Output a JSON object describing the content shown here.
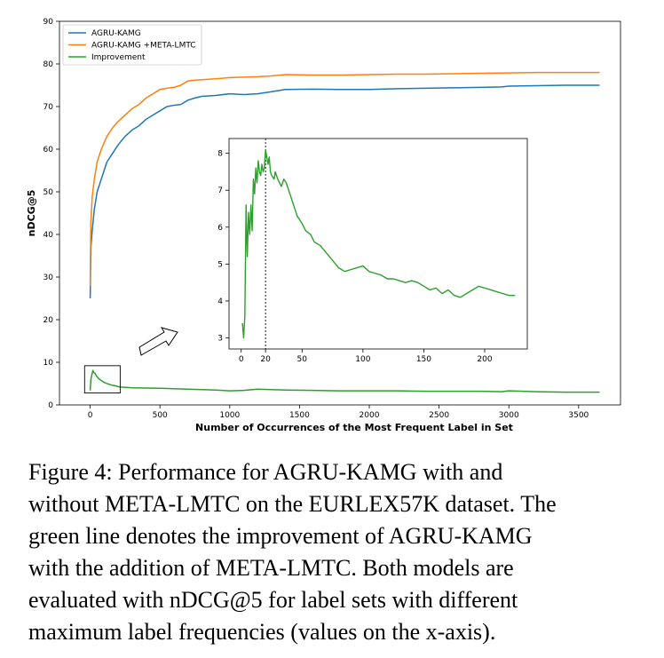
{
  "chart_data": [
    {
      "type": "line",
      "title": "",
      "xlabel": "Number of Occurrences of the Most Frequent Label in Set",
      "ylabel": "nDCG@5",
      "xlim": [
        -220,
        3800
      ],
      "ylim": [
        0,
        90
      ],
      "xticks": [
        0,
        500,
        1000,
        1500,
        2000,
        2500,
        3000,
        3500
      ],
      "yticks": [
        0,
        10,
        20,
        30,
        40,
        50,
        60,
        70,
        80,
        90
      ],
      "legend_position": "top-left",
      "series": [
        {
          "name": "AGRU-KAMG",
          "color": "#1f77b4",
          "points": [
            [
              0,
              25
            ],
            [
              5,
              37
            ],
            [
              15,
              41
            ],
            [
              30,
              46
            ],
            [
              50,
              50
            ],
            [
              80,
              53
            ],
            [
              120,
              57
            ],
            [
              160,
              59
            ],
            [
              200,
              61
            ],
            [
              250,
              63
            ],
            [
              300,
              64.5
            ],
            [
              350,
              65.5
            ],
            [
              400,
              67
            ],
            [
              450,
              68
            ],
            [
              500,
              69
            ],
            [
              550,
              70
            ],
            [
              600,
              70.3
            ],
            [
              650,
              70.5
            ],
            [
              700,
              71.5
            ],
            [
              750,
              72
            ],
            [
              800,
              72.4
            ],
            [
              900,
              72.6
            ],
            [
              1000,
              73
            ],
            [
              1100,
              72.8
            ],
            [
              1200,
              73
            ],
            [
              1300,
              73.5
            ],
            [
              1400,
              74
            ],
            [
              1600,
              74.1
            ],
            [
              1800,
              74
            ],
            [
              2000,
              74
            ],
            [
              2200,
              74.2
            ],
            [
              2400,
              74.3
            ],
            [
              2600,
              74.4
            ],
            [
              2800,
              74.5
            ],
            [
              2950,
              74.6
            ],
            [
              3000,
              74.8
            ],
            [
              3200,
              74.9
            ],
            [
              3400,
              75
            ],
            [
              3650,
              75
            ]
          ]
        },
        {
          "name": "AGRU-KAMG +META-LMTC",
          "color": "#ff7f0e",
          "points": [
            [
              0,
              28
            ],
            [
              5,
              43
            ],
            [
              15,
              49
            ],
            [
              30,
              53
            ],
            [
              50,
              57
            ],
            [
              80,
              60
            ],
            [
              120,
              63
            ],
            [
              160,
              65
            ],
            [
              200,
              66.5
            ],
            [
              250,
              68
            ],
            [
              300,
              69.5
            ],
            [
              350,
              70.5
            ],
            [
              400,
              72
            ],
            [
              450,
              73
            ],
            [
              500,
              74
            ],
            [
              550,
              74.3
            ],
            [
              600,
              74.5
            ],
            [
              650,
              75
            ],
            [
              700,
              76
            ],
            [
              750,
              76.2
            ],
            [
              800,
              76.3
            ],
            [
              900,
              76.5
            ],
            [
              1000,
              76.8
            ],
            [
              1100,
              76.9
            ],
            [
              1200,
              77
            ],
            [
              1300,
              77.2
            ],
            [
              1400,
              77.5
            ],
            [
              1600,
              77.4
            ],
            [
              1800,
              77.4
            ],
            [
              2000,
              77.5
            ],
            [
              2200,
              77.6
            ],
            [
              2400,
              77.6
            ],
            [
              2600,
              77.7
            ],
            [
              2800,
              77.8
            ],
            [
              3000,
              77.9
            ],
            [
              3200,
              78
            ],
            [
              3400,
              78
            ],
            [
              3650,
              78
            ]
          ]
        },
        {
          "name": "Improvement",
          "color": "#2ca02c",
          "points": [
            [
              0,
              3.4
            ],
            [
              5,
              5.9
            ],
            [
              10,
              6.8
            ],
            [
              15,
              7.5
            ],
            [
              20,
              8.1
            ],
            [
              25,
              7.6
            ],
            [
              35,
              7.4
            ],
            [
              45,
              6.8
            ],
            [
              60,
              6.2
            ],
            [
              80,
              5.7
            ],
            [
              100,
              5.3
            ],
            [
              120,
              5.0
            ],
            [
              140,
              4.8
            ],
            [
              160,
              4.6
            ],
            [
              180,
              4.5
            ],
            [
              200,
              4.3
            ],
            [
              220,
              4.2
            ],
            [
              300,
              4.0
            ],
            [
              500,
              3.9
            ],
            [
              700,
              3.7
            ],
            [
              900,
              3.5
            ],
            [
              1000,
              3.3
            ],
            [
              1100,
              3.4
            ],
            [
              1200,
              3.7
            ],
            [
              1300,
              3.6
            ],
            [
              1400,
              3.5
            ],
            [
              1600,
              3.4
            ],
            [
              1800,
              3.3
            ],
            [
              2000,
              3.3
            ],
            [
              2200,
              3.3
            ],
            [
              2400,
              3.2
            ],
            [
              2600,
              3.2
            ],
            [
              2800,
              3.2
            ],
            [
              2950,
              3.1
            ],
            [
              3000,
              3.3
            ],
            [
              3200,
              3.1
            ],
            [
              3400,
              3.0
            ],
            [
              3650,
              3.0
            ]
          ]
        }
      ]
    },
    {
      "type": "line",
      "title": "",
      "xlabel": "",
      "ylabel": "",
      "xlim": [
        -10,
        235
      ],
      "ylim": [
        2.7,
        8.4
      ],
      "xticks": [
        0,
        20,
        50,
        100,
        150,
        200
      ],
      "yticks": [
        3,
        4,
        5,
        6,
        7,
        8
      ],
      "vline_x": 20,
      "series": [
        {
          "name": "Improvement",
          "color": "#2ca02c",
          "points": [
            [
              1,
              3.4
            ],
            [
              2,
              3.0
            ],
            [
              3,
              3.6
            ],
            [
              4,
              6.6
            ],
            [
              5,
              5.2
            ],
            [
              6,
              6.4
            ],
            [
              7,
              5.8
            ],
            [
              8,
              6.6
            ],
            [
              9,
              5.9
            ],
            [
              10,
              7.3
            ],
            [
              11,
              6.9
            ],
            [
              12,
              7.6
            ],
            [
              13,
              7.2
            ],
            [
              14,
              7.8
            ],
            [
              15,
              7.5
            ],
            [
              16,
              7.4
            ],
            [
              17,
              7.7
            ],
            [
              18,
              7.5
            ],
            [
              19,
              7.6
            ],
            [
              20,
              8.1
            ],
            [
              21,
              7.9
            ],
            [
              22,
              7.7
            ],
            [
              23,
              7.9
            ],
            [
              24,
              7.5
            ],
            [
              25,
              7.4
            ],
            [
              27,
              7.3
            ],
            [
              28,
              7.5
            ],
            [
              30,
              7.3
            ],
            [
              33,
              7.1
            ],
            [
              35,
              7.3
            ],
            [
              37,
              7.2
            ],
            [
              40,
              6.9
            ],
            [
              43,
              6.6
            ],
            [
              46,
              6.3
            ],
            [
              50,
              6.1
            ],
            [
              53,
              5.9
            ],
            [
              57,
              5.8
            ],
            [
              60,
              5.6
            ],
            [
              65,
              5.5
            ],
            [
              70,
              5.3
            ],
            [
              75,
              5.1
            ],
            [
              80,
              4.9
            ],
            [
              85,
              4.8
            ],
            [
              90,
              4.85
            ],
            [
              95,
              4.9
            ],
            [
              100,
              4.95
            ],
            [
              105,
              4.8
            ],
            [
              110,
              4.75
            ],
            [
              115,
              4.7
            ],
            [
              120,
              4.6
            ],
            [
              125,
              4.6
            ],
            [
              130,
              4.55
            ],
            [
              135,
              4.5
            ],
            [
              140,
              4.55
            ],
            [
              145,
              4.5
            ],
            [
              150,
              4.4
            ],
            [
              155,
              4.3
            ],
            [
              160,
              4.35
            ],
            [
              165,
              4.2
            ],
            [
              170,
              4.3
            ],
            [
              175,
              4.15
            ],
            [
              180,
              4.1
            ],
            [
              185,
              4.2
            ],
            [
              190,
              4.3
            ],
            [
              195,
              4.4
            ],
            [
              200,
              4.35
            ],
            [
              205,
              4.3
            ],
            [
              210,
              4.25
            ],
            [
              215,
              4.2
            ],
            [
              220,
              4.15
            ],
            [
              225,
              4.15
            ]
          ]
        }
      ]
    }
  ],
  "caption": {
    "line1": "Figure 4:  Performance for AGRU-KAMG with and",
    "line2": "without META-LMTC on the EURLEX57K dataset. The",
    "line3": "green line denotes the improvement of AGRU-KAMG",
    "line4": "with the addition of META-LMTC. Both models are",
    "line5": "evaluated with nDCG@5 for label sets with different",
    "line6": "maximum label frequencies (values on the x-axis)."
  }
}
